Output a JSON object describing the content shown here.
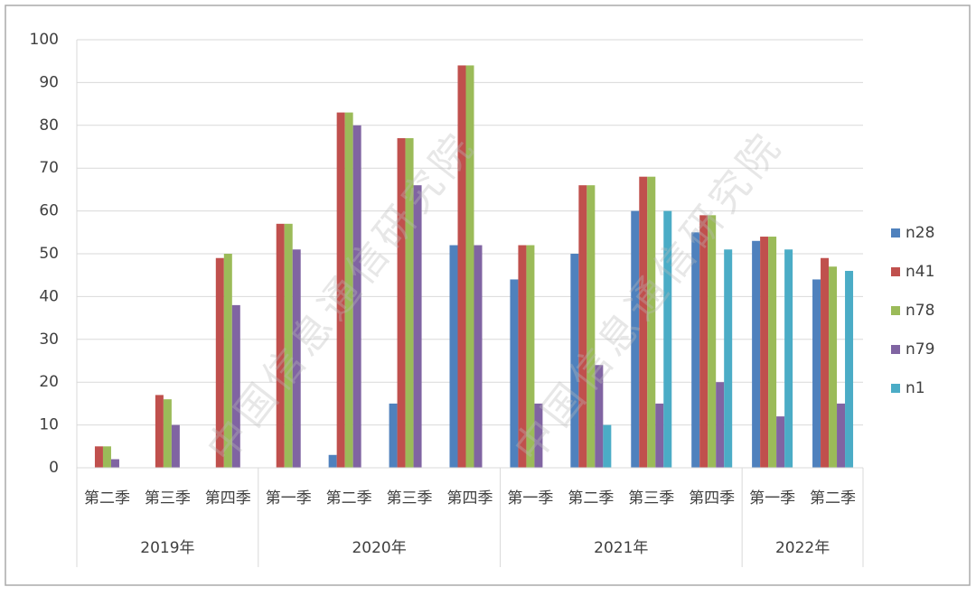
{
  "chart_data": {
    "type": "bar",
    "watermark": "中国信息通信研究院",
    "groups": [
      {
        "name": "2019年",
        "categories": [
          "第二季",
          "第三季",
          "第四季"
        ]
      },
      {
        "name": "2020年",
        "categories": [
          "第一季",
          "第二季",
          "第三季",
          "第四季"
        ]
      },
      {
        "name": "2021年",
        "categories": [
          "第一季",
          "第二季",
          "第三季",
          "第四季"
        ]
      },
      {
        "name": "2022年",
        "categories": [
          "第一季",
          "第二季"
        ]
      }
    ],
    "series": [
      {
        "name": "n28",
        "color": "#4f81bd",
        "values": [
          null,
          null,
          null,
          null,
          3,
          15,
          52,
          44,
          50,
          60,
          55,
          53,
          44
        ]
      },
      {
        "name": "n41",
        "color": "#c0504d",
        "values": [
          5,
          17,
          49,
          57,
          83,
          77,
          94,
          52,
          66,
          68,
          59,
          54,
          49
        ]
      },
      {
        "name": "n78",
        "color": "#9bbb59",
        "values": [
          5,
          16,
          50,
          57,
          83,
          77,
          94,
          52,
          66,
          68,
          59,
          54,
          47
        ]
      },
      {
        "name": "n79",
        "color": "#8064a2",
        "values": [
          2,
          10,
          38,
          51,
          80,
          66,
          52,
          15,
          24,
          15,
          20,
          12,
          15
        ]
      },
      {
        "name": "n1",
        "color": "#4bacc6",
        "values": [
          null,
          null,
          null,
          null,
          null,
          null,
          null,
          null,
          10,
          60,
          51,
          51,
          46
        ]
      }
    ],
    "ylim": [
      0,
      100
    ],
    "yticks": [
      0,
      10,
      20,
      30,
      40,
      50,
      60,
      70,
      80,
      90,
      100
    ],
    "grid": true,
    "legend": "right"
  }
}
